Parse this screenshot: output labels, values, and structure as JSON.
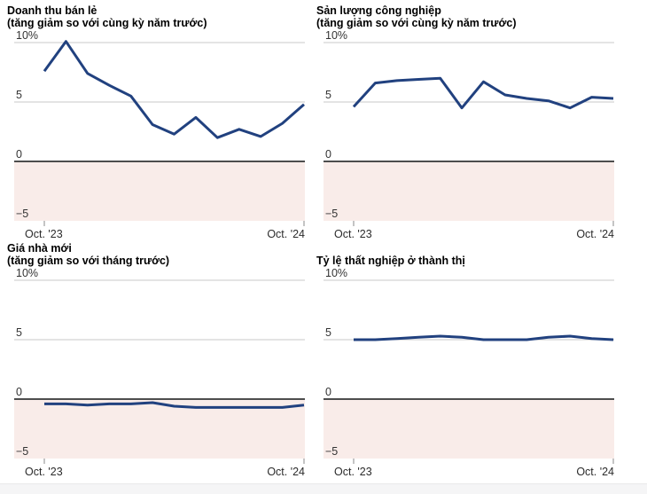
{
  "page": {
    "x_axis": {
      "start_label": "Oct. '23",
      "end_label": "Oct. '24"
    },
    "colors": {
      "series_line": "#21417f",
      "gridline": "#c9c9c9",
      "zero_line": "#4d4d4d",
      "negative_fill": "#f9ece9",
      "tick": "#8a8a8a",
      "axis_text": "#333333"
    }
  },
  "chart_data": [
    {
      "type": "line",
      "title": "Doanh thu bán lẻ",
      "subtitle": "(tăng giảm so với cùng kỳ năm trước)",
      "ylim": [
        -5,
        10
      ],
      "y_labels": [
        {
          "text": "10%",
          "value": 10
        },
        {
          "text": "5",
          "value": 5
        },
        {
          "text": "0",
          "value": 0
        },
        {
          "text": "−5",
          "value": -5
        }
      ],
      "negative_region": {
        "from": 0,
        "to": -5
      },
      "x_range": {
        "start": "Oct. '23",
        "end": "Oct. '24",
        "points": 13,
        "interval": "monthly"
      },
      "values": [
        7.6,
        10.1,
        7.4,
        6.4,
        5.5,
        3.1,
        2.3,
        3.7,
        2.0,
        2.7,
        2.1,
        3.2,
        4.8
      ]
    },
    {
      "type": "line",
      "title": "Sản lượng công nghiệp",
      "subtitle": "(tăng giảm so với cùng kỳ năm trước)",
      "ylim": [
        -5,
        10
      ],
      "y_labels": [
        {
          "text": "10%",
          "value": 10
        },
        {
          "text": "5",
          "value": 5
        },
        {
          "text": "0",
          "value": 0
        },
        {
          "text": "−5",
          "value": -5
        }
      ],
      "negative_region": {
        "from": 0,
        "to": -5
      },
      "x_range": {
        "start": "Oct. '23",
        "end": "Oct. '24",
        "points": 13,
        "interval": "monthly"
      },
      "values": [
        4.6,
        6.6,
        6.8,
        6.9,
        7.0,
        4.5,
        6.7,
        5.6,
        5.3,
        5.1,
        4.5,
        5.4,
        5.3
      ]
    },
    {
      "type": "line",
      "title": "Giá nhà mới",
      "subtitle": "(tăng giảm so với tháng trước)",
      "ylim": [
        -5,
        10
      ],
      "y_labels": [
        {
          "text": "10%",
          "value": 10
        },
        {
          "text": "5",
          "value": 5
        },
        {
          "text": "0",
          "value": 0
        },
        {
          "text": "−5",
          "value": -5
        }
      ],
      "negative_region": {
        "from": 0,
        "to": -5
      },
      "x_range": {
        "start": "Oct. '23",
        "end": "Oct. '24",
        "points": 13,
        "interval": "monthly"
      },
      "values": [
        -0.4,
        -0.4,
        -0.5,
        -0.4,
        -0.4,
        -0.3,
        -0.6,
        -0.7,
        -0.7,
        -0.7,
        -0.7,
        -0.7,
        -0.5
      ]
    },
    {
      "type": "line",
      "title": "Tỷ lệ thất nghiệp ở thành thị",
      "subtitle": "",
      "ylim": [
        -5,
        10
      ],
      "y_labels": [
        {
          "text": "10%",
          "value": 10
        },
        {
          "text": "5",
          "value": 5
        },
        {
          "text": "0",
          "value": 0
        },
        {
          "text": "−5",
          "value": -5
        }
      ],
      "negative_region": {
        "from": 0,
        "to": -5
      },
      "x_range": {
        "start": "Oct. '23",
        "end": "Oct. '24",
        "points": 13,
        "interval": "monthly"
      },
      "values": [
        5.0,
        5.0,
        5.1,
        5.2,
        5.3,
        5.2,
        5.0,
        5.0,
        5.0,
        5.2,
        5.3,
        5.1,
        5.0
      ]
    }
  ]
}
